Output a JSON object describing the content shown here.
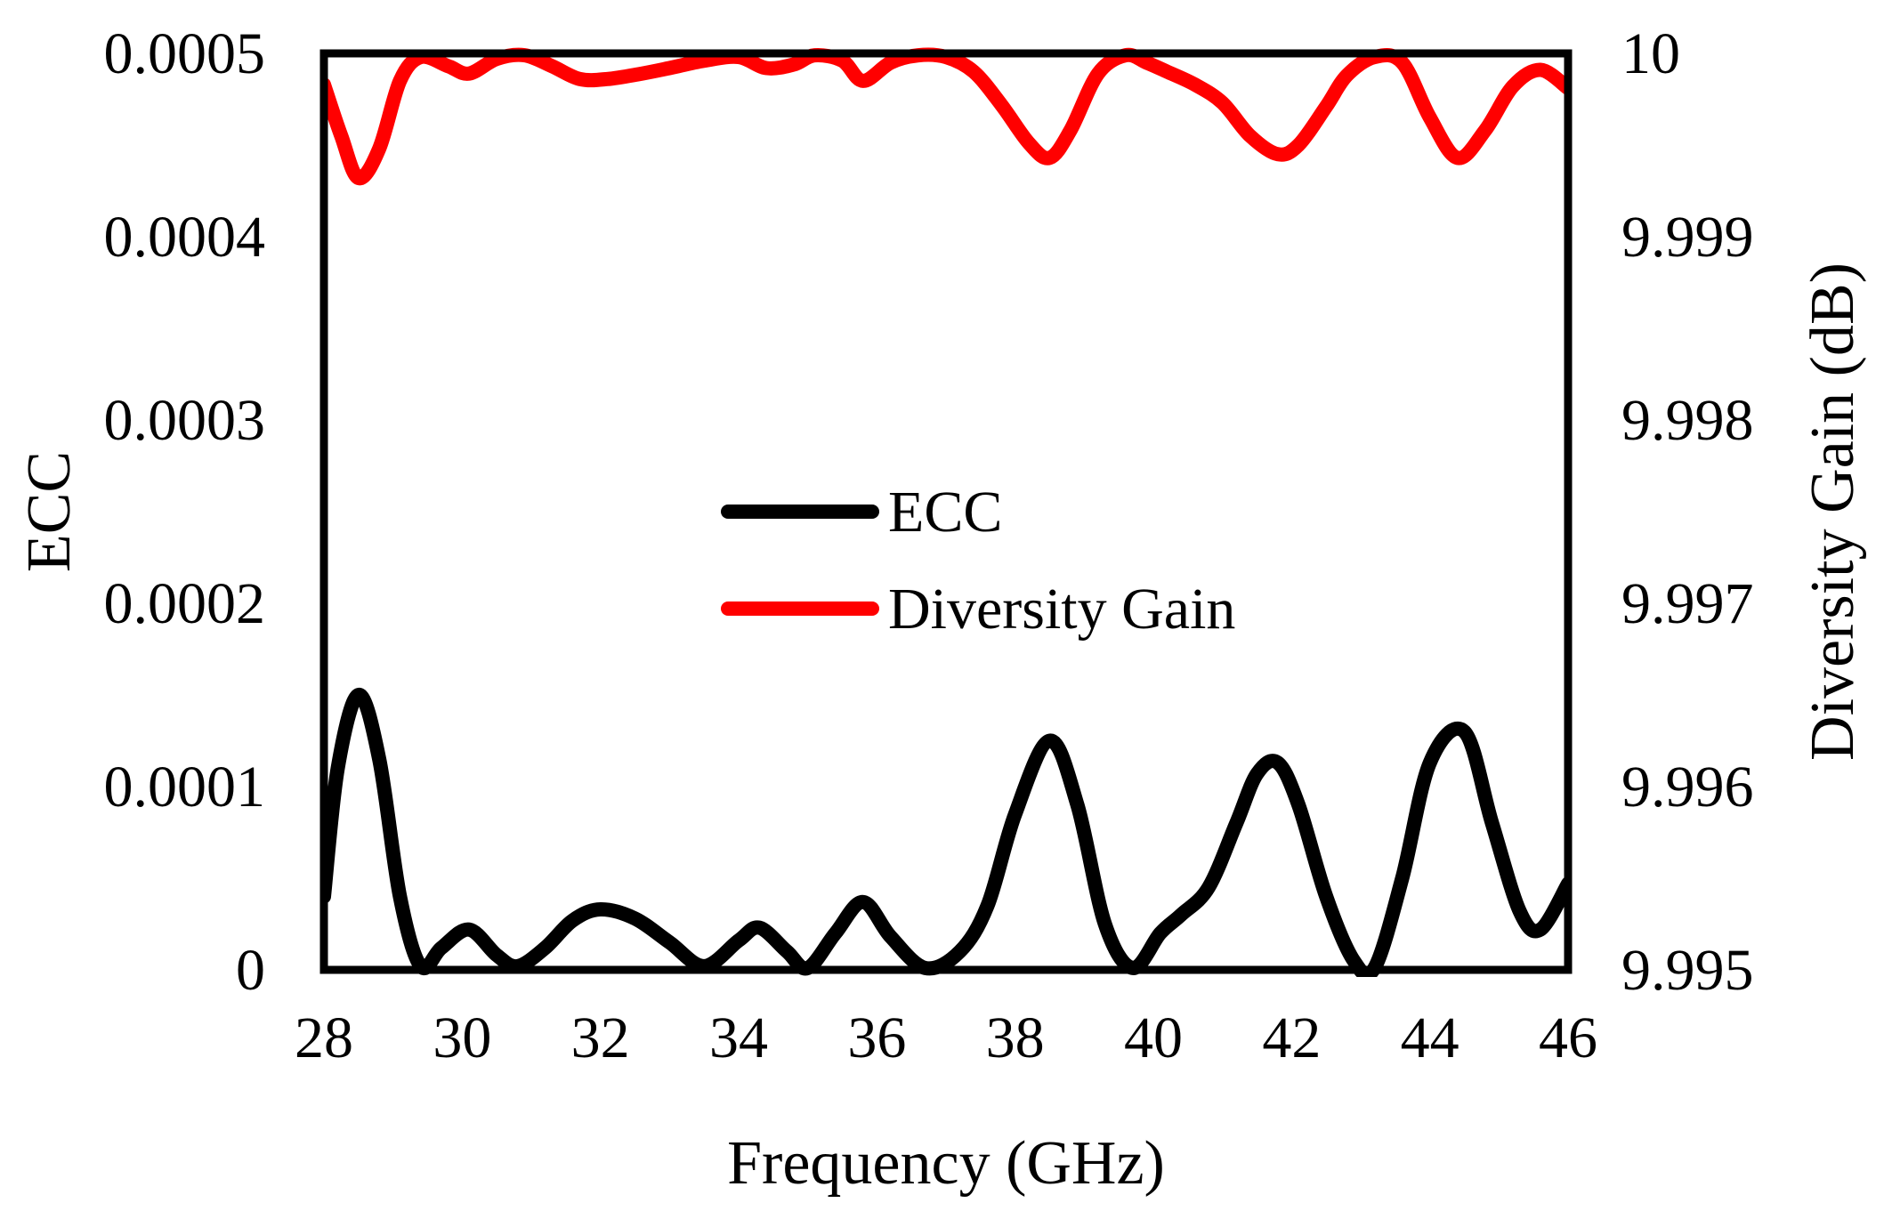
{
  "chart_data": {
    "type": "line",
    "title": "",
    "xlabel": "Frequency (GHz)",
    "ylabel": "ECC",
    "y2label": "Diversity Gain (dB)",
    "xlim": [
      28,
      46
    ],
    "ylim": [
      0,
      0.0005
    ],
    "y2lim": [
      9.995,
      10
    ],
    "x_ticks": [
      28,
      30,
      32,
      34,
      36,
      38,
      40,
      42,
      44,
      46
    ],
    "x_tick_labels": [
      "28",
      "30",
      "32",
      "34",
      "36",
      "38",
      "40",
      "42",
      "44",
      "46"
    ],
    "y_ticks": [
      0,
      0.0001,
      0.0002,
      0.0003,
      0.0004,
      0.0005
    ],
    "y_tick_labels": [
      "0",
      "0.0001",
      "0.0002",
      "0.0003",
      "0.0004",
      "0.0005"
    ],
    "y2_ticks": [
      9.995,
      9.996,
      9.997,
      9.998,
      9.999,
      10
    ],
    "y2_tick_labels": [
      "9.995",
      "9.996",
      "9.997",
      "9.998",
      "9.999",
      "10"
    ],
    "grid": false,
    "legend_position": "center",
    "series": [
      {
        "name": "ECC",
        "axis": "left",
        "color": "#000000",
        "x": [
          28,
          28.2,
          28.5,
          28.8,
          29.1,
          29.4,
          29.7,
          30.1,
          30.5,
          30.8,
          31.2,
          31.6,
          32.0,
          32.5,
          33.0,
          33.5,
          34.0,
          34.3,
          34.7,
          35.0,
          35.4,
          35.8,
          36.2,
          36.7,
          37.2,
          37.6,
          38.0,
          38.5,
          38.9,
          39.3,
          39.7,
          40.1,
          40.4,
          40.8,
          41.2,
          41.5,
          41.8,
          42.1,
          42.5,
          42.9,
          43.2,
          43.6,
          44.0,
          44.5,
          44.9,
          45.3,
          45.6,
          46.0
        ],
        "y": [
          4e-05,
          0.00011,
          0.00015,
          0.000115,
          4e-05,
          2e-06,
          1.2e-05,
          2.2e-05,
          8e-06,
          2e-06,
          1.2e-05,
          2.7e-05,
          3.3e-05,
          2.8e-05,
          1.5e-05,
          2e-06,
          1.6e-05,
          2.3e-05,
          1e-05,
          1e-06,
          2e-05,
          3.7e-05,
          1.8e-05,
          1e-06,
          1e-05,
          3.5e-05,
          8.5e-05,
          0.000125,
          9e-05,
          2.5e-05,
          1e-06,
          2e-05,
          3e-05,
          4.5e-05,
          8e-05,
          0.000107,
          0.000113,
          9e-05,
          4e-05,
          5e-06,
          1e-06,
          5e-05,
          0.000113,
          0.00013,
          8e-05,
          3.2e-05,
          2.2e-05,
          4.7e-05
        ]
      },
      {
        "name": "Diversity Gain",
        "axis": "right",
        "color": "#ff0000",
        "x": [
          28,
          28.25,
          28.5,
          28.8,
          29.1,
          29.4,
          29.8,
          30.1,
          30.5,
          30.9,
          31.3,
          31.7,
          32.1,
          32.6,
          33.0,
          33.5,
          34.0,
          34.4,
          34.8,
          35.1,
          35.5,
          35.8,
          36.2,
          36.6,
          37.0,
          37.4,
          37.8,
          38.2,
          38.5,
          38.8,
          39.2,
          39.6,
          39.9,
          40.2,
          40.6,
          41.0,
          41.4,
          41.8,
          42.1,
          42.5,
          42.8,
          43.2,
          43.6,
          44.0,
          44.4,
          44.8,
          45.2,
          45.6,
          46.0
        ],
        "y": [
          9.99983,
          9.99955,
          9.99932,
          9.99948,
          9.99985,
          9.99998,
          9.99993,
          9.99989,
          9.99997,
          9.99999,
          9.99993,
          9.99986,
          9.99986,
          9.99989,
          9.99992,
          9.99996,
          9.99998,
          9.99992,
          9.99994,
          9.99999,
          9.99996,
          9.99985,
          9.99995,
          9.99999,
          9.99998,
          9.9999,
          9.99972,
          9.99951,
          9.99943,
          9.99958,
          9.99989,
          9.99999,
          9.99995,
          9.9999,
          9.99983,
          9.99973,
          9.99955,
          9.99945,
          9.9995,
          9.99971,
          9.99988,
          9.99998,
          9.99995,
          9.99965,
          9.99943,
          9.99958,
          9.99982,
          9.99991,
          9.99981
        ]
      }
    ]
  }
}
